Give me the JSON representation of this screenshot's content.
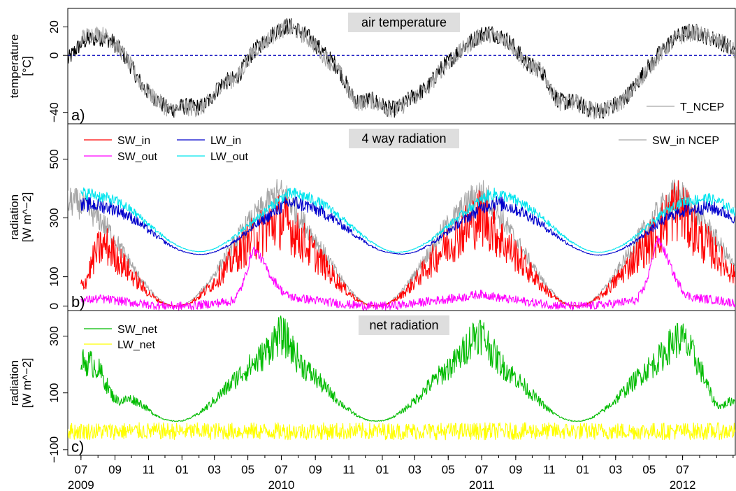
{
  "figure": {
    "x_tick_labels": [
      "07",
      "09",
      "11",
      "01",
      "03",
      "05",
      "07",
      "09",
      "11",
      "01",
      "03",
      "05",
      "07",
      "09",
      "11",
      "01",
      "03",
      "05",
      "07"
    ],
    "x_year_labels": [
      "2009",
      "2010",
      "2011",
      "2012"
    ]
  },
  "chart_data": [
    {
      "type": "line",
      "panel_label": "a)",
      "title": "air temperature",
      "ylabel": [
        "temperature",
        "[°C]"
      ],
      "y_ticks": [
        -40,
        0,
        20
      ],
      "ylim": [
        -48,
        33
      ],
      "x_range": [
        "2009-06-07",
        "2012-10-05"
      ],
      "legend": [
        "T_NCEP"
      ],
      "legend_position": "bottom-right",
      "reference_line": {
        "y": 0,
        "style": "dashed",
        "color": "#0000bb"
      },
      "series": [
        {
          "color": "#000000",
          "annual_min": -38,
          "annual_max": 16,
          "min_date": "02-01",
          "noise": 6,
          "knots": [
            [
              "2009-06-07",
              -8
            ],
            [
              "2009-06-20",
              2
            ],
            [
              "2009-07-05",
              18
            ],
            [
              "2009-07-20",
              5
            ],
            [
              "2009-08-10",
              15
            ],
            [
              "2009-09-15",
              2
            ],
            [
              "2009-10-20",
              -22
            ],
            [
              "2009-12-01",
              -36
            ],
            [
              "2010-01-20",
              -36
            ],
            [
              "2010-03-15",
              -20
            ],
            [
              "2010-05-10",
              2
            ],
            [
              "2010-06-20",
              16
            ],
            [
              "2010-07-10",
              22
            ],
            [
              "2010-08-10",
              14
            ],
            [
              "2010-09-20",
              0
            ],
            [
              "2010-11-10",
              -30
            ],
            [
              "2011-01-10",
              -37
            ],
            [
              "2011-03-01",
              -28
            ],
            [
              "2011-04-20",
              -8
            ],
            [
              "2011-05-20",
              2
            ],
            [
              "2011-07-05",
              16
            ],
            [
              "2011-08-10",
              12
            ],
            [
              "2011-09-20",
              -5
            ],
            [
              "2011-11-15",
              -30
            ],
            [
              "2012-01-15",
              -38
            ],
            [
              "2012-03-10",
              -32
            ],
            [
              "2012-04-30",
              -8
            ],
            [
              "2012-06-10",
              10
            ],
            [
              "2012-07-10",
              16
            ],
            [
              "2012-08-20",
              12
            ],
            [
              "2012-10-05",
              2
            ]
          ]
        },
        {
          "name": "T_NCEP",
          "color": "#a6a6a6",
          "annual_min": -38,
          "annual_max": 15,
          "min_date": "02-01",
          "noise": 6,
          "knots": [
            [
              "2009-07-01",
              12
            ],
            [
              "2009-08-10",
              15
            ],
            [
              "2009-09-15",
              2
            ],
            [
              "2009-10-20",
              -22
            ],
            [
              "2009-12-01",
              -36
            ],
            [
              "2010-01-20",
              -37
            ],
            [
              "2010-03-15",
              -20
            ],
            [
              "2010-05-10",
              2
            ],
            [
              "2010-06-20",
              15
            ],
            [
              "2010-07-10",
              20
            ],
            [
              "2010-08-10",
              13
            ],
            [
              "2010-09-20",
              -2
            ],
            [
              "2010-11-10",
              -31
            ],
            [
              "2011-01-10",
              -37
            ],
            [
              "2011-03-01",
              -29
            ],
            [
              "2011-04-20",
              -9
            ],
            [
              "2011-05-20",
              1
            ],
            [
              "2011-07-05",
              15
            ],
            [
              "2011-08-10",
              11
            ],
            [
              "2011-09-20",
              -6
            ],
            [
              "2011-11-15",
              -31
            ],
            [
              "2012-01-15",
              -38
            ],
            [
              "2012-03-10",
              -33
            ],
            [
              "2012-04-30",
              -9
            ],
            [
              "2012-06-10",
              9
            ],
            [
              "2012-07-10",
              15
            ],
            [
              "2012-08-20",
              12
            ],
            [
              "2012-10-05",
              2
            ]
          ]
        }
      ]
    },
    {
      "type": "line",
      "panel_label": "b)",
      "title": "4 way radiation",
      "ylabel": [
        "radiation",
        "[W m^−2]"
      ],
      "y_ticks": [
        0,
        100,
        300,
        500
      ],
      "ylim": [
        -15,
        620
      ],
      "x_range": [
        "2009-06-07",
        "2012-10-05"
      ],
      "legend": [
        "SW_in",
        "SW_out",
        "LW_in",
        "LW_out",
        "SW_in NCEP"
      ],
      "legend_position": "top-left; SW_in NCEP top-right",
      "series": [
        {
          "name": "SW_in",
          "color": "#ff0000",
          "annual_min": 0,
          "annual_max": 260,
          "min_date": "12-21",
          "noise": 90,
          "knots": [
            [
              "2009-07-01",
              70
            ],
            [
              "2010-07-01",
              290
            ],
            [
              "2011-07-01",
              300
            ],
            [
              "2012-06-20",
              330
            ]
          ]
        },
        {
          "name": "SW_out",
          "color": "#ff00ff",
          "annual_min": 0,
          "annual_max": 30,
          "min_date": "12-21",
          "noise": 15,
          "knots": [
            [
              "2009-07-01",
              20
            ],
            [
              "2010-05-20",
              220
            ],
            [
              "2010-06-15",
              50
            ],
            [
              "2011-07-01",
              40
            ],
            [
              "2012-05-25",
              260
            ],
            [
              "2012-06-20",
              30
            ]
          ]
        },
        {
          "name": "LW_in",
          "color": "#0000cc",
          "annual_min": 175,
          "annual_max": 340,
          "min_date": "02-01",
          "noise": 25,
          "knots": [
            [
              "2009-07-01",
              340
            ],
            [
              "2010-01-15",
              180
            ],
            [
              "2010-07-15",
              350
            ],
            [
              "2011-01-20",
              180
            ],
            [
              "2011-07-20",
              350
            ],
            [
              "2012-01-20",
              175
            ],
            [
              "2012-07-20",
              330
            ]
          ]
        },
        {
          "name": "LW_out",
          "color": "#00e5ee",
          "annual_min": 185,
          "annual_max": 370,
          "min_date": "02-01",
          "noise": 20,
          "knots": [
            [
              "2009-07-01",
              380
            ],
            [
              "2010-01-15",
              190
            ],
            [
              "2010-07-15",
              380
            ],
            [
              "2011-01-20",
              185
            ],
            [
              "2011-07-20",
              380
            ],
            [
              "2012-01-20",
              185
            ],
            [
              "2012-07-20",
              360
            ]
          ]
        },
        {
          "name": "SW_in NCEP",
          "color": "#a6a6a6",
          "annual_min": 0,
          "annual_max": 340,
          "min_date": "12-21",
          "noise": 50,
          "knots": [
            [
              "2009-06-07",
              350
            ],
            [
              "2010-07-01",
              380
            ],
            [
              "2011-07-01",
              380
            ],
            [
              "2012-06-20",
              380
            ]
          ]
        }
      ]
    },
    {
      "type": "line",
      "panel_label": "c)",
      "title": "net radiation",
      "ylabel": [
        "radiation",
        "[W m^−2]"
      ],
      "y_ticks": [
        -100,
        100,
        300
      ],
      "ylim": [
        -120,
        390
      ],
      "x_range": [
        "2009-06-07",
        "2012-10-05"
      ],
      "legend": [
        "SW_net",
        "LW_net"
      ],
      "legend_position": "top-left",
      "series": [
        {
          "name": "SW_net",
          "color": "#00bb00",
          "annual_min": 0,
          "annual_max": 230,
          "min_date": "12-21",
          "noise": 55,
          "knots": [
            [
              "2009-07-01",
              210
            ],
            [
              "2009-09-01",
              80
            ],
            [
              "2010-07-01",
              300
            ],
            [
              "2011-06-25",
              310
            ],
            [
              "2012-06-25",
              290
            ],
            [
              "2012-09-01",
              60
            ]
          ]
        },
        {
          "name": "LW_net",
          "color": "#ffff00",
          "annual_min": -35,
          "annual_max": -35,
          "min_date": "12-21",
          "noise": 30,
          "knots": []
        }
      ]
    }
  ]
}
